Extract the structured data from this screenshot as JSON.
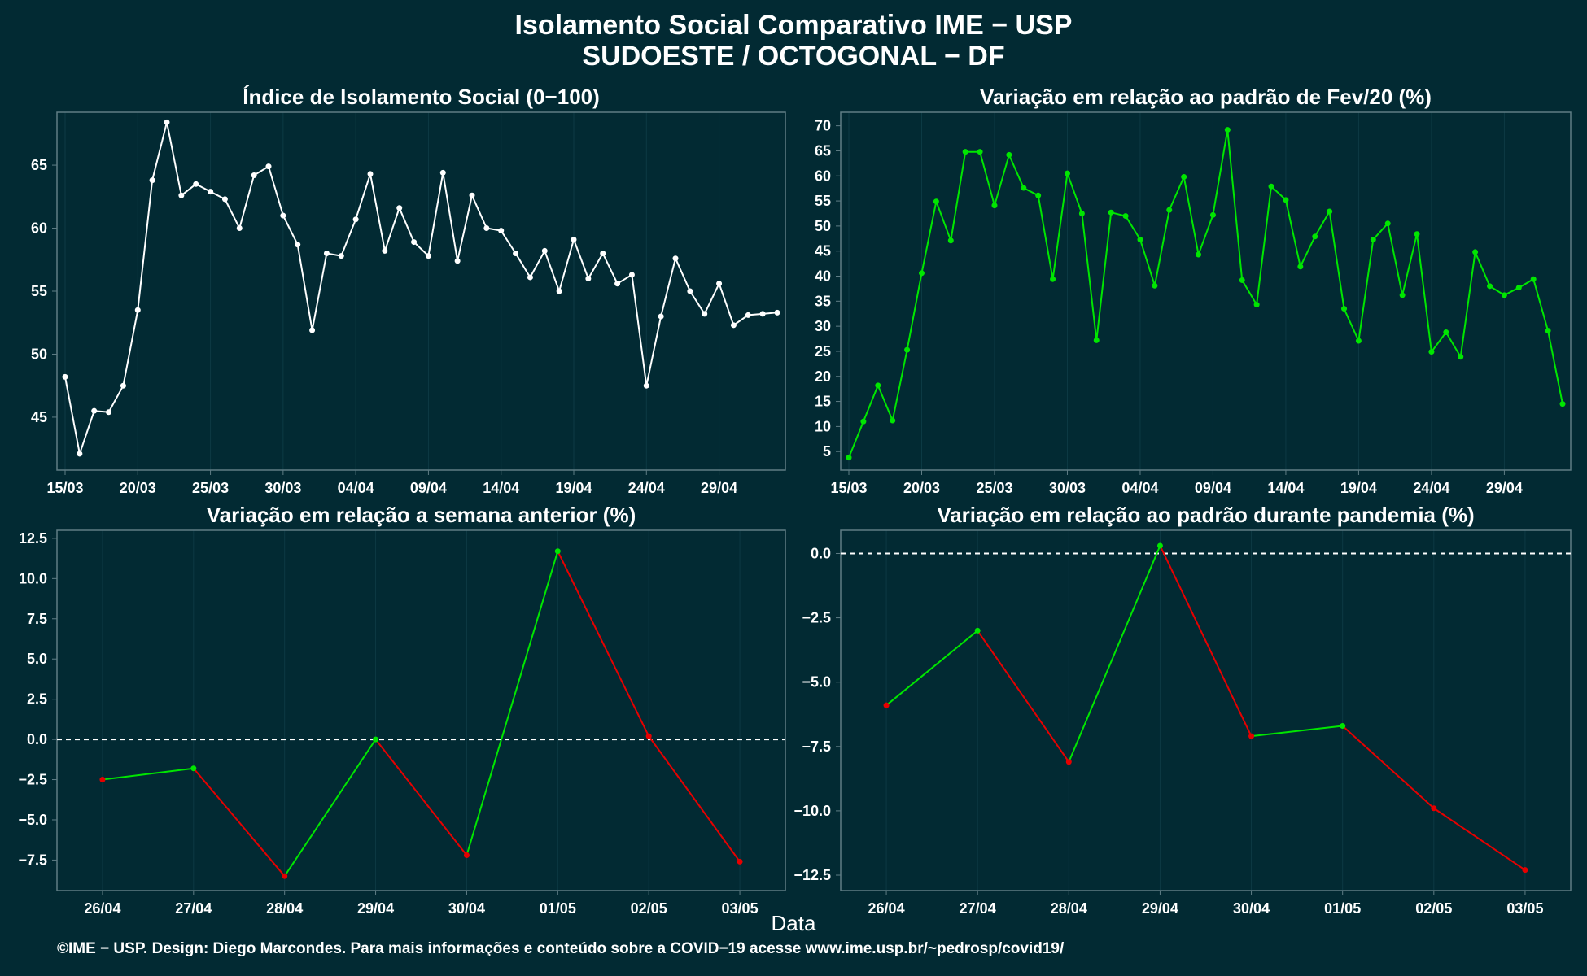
{
  "header": {
    "title_line1": "Isolamento Social Comparativo IME − USP",
    "title_line2": "SUDOESTE / OCTOGONAL − DF"
  },
  "x_axis_label": "Data",
  "footer": "©IME − USP. Design: Diego Marcondes. Para mais informações e conteúdo sobre a COVID−19 acesse www.ime.usp.br/~pedrosp/covid19/",
  "colors": {
    "background": "#022a33",
    "white_line": "#ffffff",
    "green_line": "#00e600",
    "red_line": "#e60000",
    "frame": "#5f7d85",
    "grid": "#0d3a44"
  },
  "chart_data": [
    {
      "type": "line",
      "title": "Índice de Isolamento Social (0−100)",
      "color": "white",
      "x_labels": [
        "15/03",
        "20/03",
        "25/03",
        "30/03",
        "04/04",
        "09/04",
        "14/04",
        "19/04",
        "24/04",
        "29/04"
      ],
      "x_label_start_index": 0,
      "x_label_step": 5,
      "ylim": [
        40.8,
        69.2
      ],
      "yticks": [
        45,
        50,
        55,
        60,
        65
      ],
      "values": [
        48.2,
        42.1,
        45.5,
        45.4,
        47.5,
        53.5,
        63.8,
        68.4,
        62.6,
        63.5,
        62.9,
        62.3,
        60.0,
        64.2,
        64.9,
        61.0,
        58.7,
        51.9,
        58.0,
        57.8,
        60.7,
        64.3,
        58.2,
        61.6,
        58.9,
        57.8,
        64.4,
        57.4,
        62.6,
        60.0,
        59.8,
        58.0,
        56.1,
        58.2,
        55.0,
        59.1,
        56.0,
        58.0,
        55.6,
        56.3,
        47.5,
        53.0,
        57.6,
        55.0,
        53.2,
        55.6,
        52.3,
        53.1,
        53.2,
        53.3
      ]
    },
    {
      "type": "line",
      "title": "Variação em relação ao padrão de Fev/20 (%)",
      "color": "green",
      "x_labels": [
        "15/03",
        "20/03",
        "25/03",
        "30/03",
        "04/04",
        "09/04",
        "14/04",
        "19/04",
        "24/04",
        "29/04"
      ],
      "x_label_start_index": 0,
      "x_label_step": 5,
      "ylim": [
        1.3,
        72.7
      ],
      "yticks": [
        5,
        10,
        15,
        20,
        25,
        30,
        35,
        40,
        45,
        50,
        55,
        60,
        65,
        70
      ],
      "values": [
        3.8,
        11.0,
        18.2,
        11.2,
        25.3,
        40.6,
        54.9,
        47.1,
        64.8,
        64.8,
        54.1,
        64.2,
        57.6,
        56.1,
        39.4,
        60.5,
        52.5,
        27.2,
        52.7,
        52.0,
        47.3,
        38.1,
        53.2,
        59.8,
        44.3,
        52.2,
        69.2,
        39.2,
        34.3,
        57.9,
        55.2,
        41.9,
        47.9,
        52.9,
        33.5,
        27.1,
        47.3,
        50.5,
        36.2,
        48.4,
        24.9,
        28.8,
        23.9,
        44.8,
        38.0,
        36.2,
        37.7,
        39.4,
        29.1,
        14.5
      ]
    },
    {
      "type": "line",
      "title": "Variação em relação a semana anterior (%)",
      "color_rule": "green when increasing, red when decreasing",
      "reference_line": 0,
      "categories": [
        "26/04",
        "27/04",
        "28/04",
        "29/04",
        "30/04",
        "01/05",
        "02/05",
        "03/05"
      ],
      "ylim": [
        -9.4,
        13.0
      ],
      "yticks": [
        -7.5,
        -5.0,
        -2.5,
        0.0,
        2.5,
        5.0,
        7.5,
        10.0,
        12.5
      ],
      "ytick_labels": [
        "−7.5",
        "−5.0",
        "−2.5",
        "0.0",
        "2.5",
        "5.0",
        "7.5",
        "10.0",
        "12.5"
      ],
      "values": [
        -2.5,
        -1.8,
        -8.5,
        0.0,
        -7.2,
        11.7,
        0.2,
        -7.6
      ]
    },
    {
      "type": "line",
      "title": "Variação em relação ao padrão durante pandemia (%)",
      "color_rule": "green when increasing, red when decreasing",
      "reference_line": 0,
      "categories": [
        "26/04",
        "27/04",
        "28/04",
        "29/04",
        "30/04",
        "01/05",
        "02/05",
        "03/05"
      ],
      "ylim": [
        -13.1,
        0.9
      ],
      "yticks": [
        -12.5,
        -10.0,
        -7.5,
        -5.0,
        -2.5,
        0.0
      ],
      "ytick_labels": [
        "−12.5",
        "−10.0",
        "−7.5",
        "−5.0",
        "−2.5",
        "0.0"
      ],
      "values": [
        -5.9,
        -3.0,
        -8.1,
        0.3,
        -7.1,
        -6.7,
        -9.9,
        -12.3
      ]
    }
  ]
}
